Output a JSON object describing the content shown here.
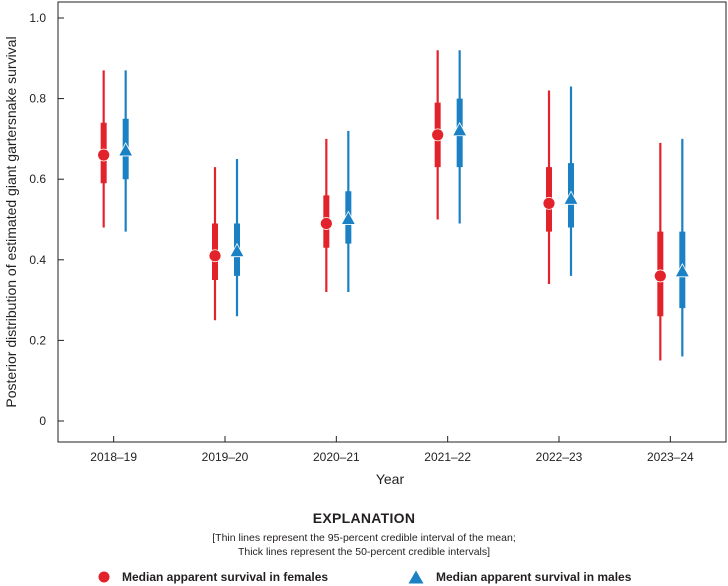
{
  "chart_data": {
    "type": "interval",
    "categories": [
      "2018–19",
      "2019–20",
      "2020–21",
      "2021–22",
      "2022–23",
      "2023–24"
    ],
    "xlabel": "Year",
    "ylabel": "Posterior distribution of estimated giant gartersnake survival",
    "ylim": [
      0,
      1.0
    ],
    "yticks": [
      0,
      0.2,
      0.4,
      0.6,
      0.8,
      1.0
    ],
    "ytick_labels": [
      "0",
      "0.2",
      "0.4",
      "0.6",
      "0.8",
      "1.0"
    ],
    "series": [
      {
        "name": "Median apparent survival in females",
        "color": "#e3232b",
        "marker": "circle",
        "median": [
          0.66,
          0.41,
          0.49,
          0.71,
          0.54,
          0.36
        ],
        "ci95": [
          [
            0.48,
            0.87
          ],
          [
            0.25,
            0.63
          ],
          [
            0.32,
            0.7
          ],
          [
            0.5,
            0.92
          ],
          [
            0.34,
            0.82
          ],
          [
            0.15,
            0.69
          ]
        ],
        "ci50": [
          [
            0.59,
            0.74
          ],
          [
            0.35,
            0.49
          ],
          [
            0.43,
            0.56
          ],
          [
            0.63,
            0.79
          ],
          [
            0.47,
            0.63
          ],
          [
            0.26,
            0.47
          ]
        ]
      },
      {
        "name": "Median apparent survival in males",
        "color": "#1a81c4",
        "marker": "triangle",
        "median": [
          0.67,
          0.42,
          0.5,
          0.72,
          0.55,
          0.37
        ],
        "ci95": [
          [
            0.47,
            0.87
          ],
          [
            0.26,
            0.65
          ],
          [
            0.32,
            0.72
          ],
          [
            0.49,
            0.92
          ],
          [
            0.36,
            0.83
          ],
          [
            0.16,
            0.7
          ]
        ],
        "ci50": [
          [
            0.6,
            0.75
          ],
          [
            0.36,
            0.49
          ],
          [
            0.44,
            0.57
          ],
          [
            0.63,
            0.8
          ],
          [
            0.48,
            0.64
          ],
          [
            0.28,
            0.47
          ]
        ]
      }
    ]
  },
  "explanation": {
    "title": "EXPLANATION",
    "note_line1": "[Thin lines represent the 95-percent credible interval of the mean;",
    "note_line2": "Thick lines represent the 50-percent credible intervals]"
  },
  "legend": {
    "female_label": "Median apparent survival in females",
    "male_label": "Median apparent survival in males"
  }
}
